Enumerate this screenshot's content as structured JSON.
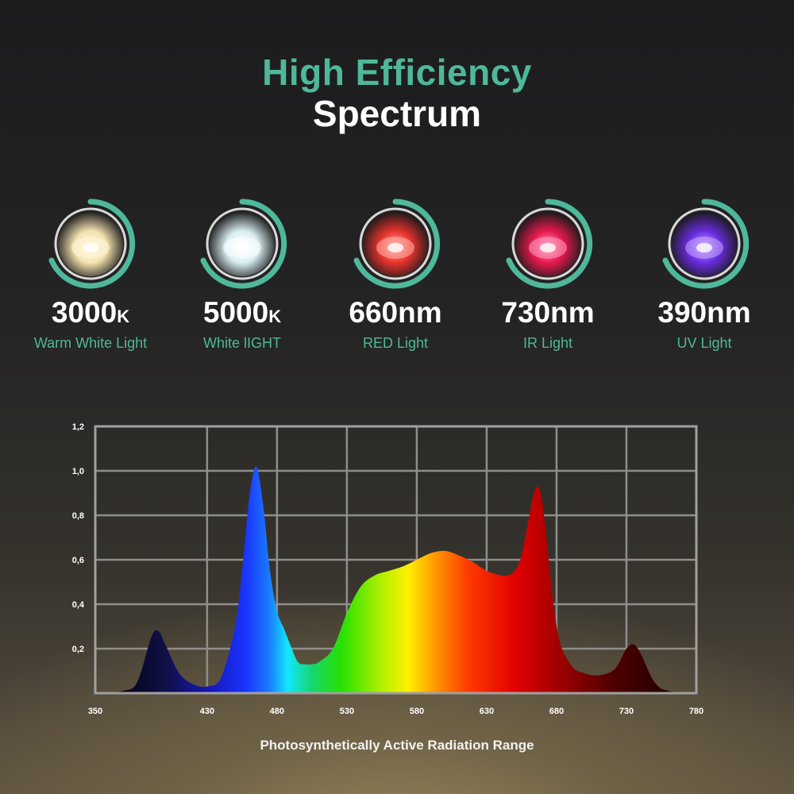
{
  "header": {
    "line1": "High Efficiency",
    "line2": "Spectrum",
    "accent": "#4fb89a"
  },
  "leds": [
    {
      "value": "3000",
      "unit": "K",
      "label": "Warm White Light",
      "icon": "warm-white-led-icon",
      "core": "#f4e2b0",
      "glow": "#fff6dc"
    },
    {
      "value": "5000",
      "unit": "K",
      "label": "White lIGHT",
      "icon": "white-led-icon",
      "core": "#d9eef2",
      "glow": "#ffffff"
    },
    {
      "value": "660nm",
      "unit": "",
      "label": "RED Light",
      "icon": "red-led-icon",
      "core": "#e8332d",
      "glow": "#ffb3a8"
    },
    {
      "value": "730nm",
      "unit": "",
      "label": "IR Light",
      "icon": "ir-led-icon",
      "core": "#e8194f",
      "glow": "#ff9fc0"
    },
    {
      "value": "390nm",
      "unit": "",
      "label": "UV Light",
      "icon": "uv-led-icon",
      "core": "#6a2ce0",
      "glow": "#c8a8ff"
    }
  ],
  "chart_data": {
    "type": "area",
    "title": "",
    "xlabel": "Photosynthetically Active Radiation Range",
    "ylabel": "",
    "x_ticks": [
      "350",
      "430",
      "480",
      "530",
      "580",
      "630",
      "680",
      "730",
      "780"
    ],
    "y_ticks": [
      "0,2",
      "0,4",
      "0,6",
      "0,8",
      "1,0",
      "1,2"
    ],
    "xlim": [
      350,
      780
    ],
    "ylim": [
      0,
      1.2
    ],
    "grid": true,
    "x": [
      350,
      370,
      380,
      390,
      395,
      400,
      410,
      420,
      430,
      440,
      450,
      455,
      460,
      465,
      470,
      475,
      480,
      485,
      490,
      495,
      500,
      505,
      510,
      520,
      530,
      540,
      550,
      560,
      570,
      580,
      590,
      600,
      610,
      620,
      630,
      640,
      645,
      650,
      655,
      660,
      665,
      670,
      680,
      690,
      700,
      710,
      720,
      725,
      730,
      735,
      740,
      750,
      760,
      780
    ],
    "y": [
      0.0,
      0.01,
      0.05,
      0.25,
      0.28,
      0.22,
      0.09,
      0.04,
      0.03,
      0.07,
      0.3,
      0.55,
      0.87,
      1.02,
      0.85,
      0.55,
      0.37,
      0.29,
      0.21,
      0.14,
      0.13,
      0.13,
      0.14,
      0.2,
      0.36,
      0.48,
      0.53,
      0.55,
      0.57,
      0.6,
      0.63,
      0.64,
      0.62,
      0.59,
      0.55,
      0.53,
      0.53,
      0.55,
      0.62,
      0.78,
      0.92,
      0.85,
      0.3,
      0.13,
      0.09,
      0.08,
      0.1,
      0.14,
      0.2,
      0.22,
      0.18,
      0.05,
      0.01,
      0.0
    ],
    "colors": {
      "grid": "#8e8e8e",
      "frame": "#a0a0a0"
    }
  }
}
